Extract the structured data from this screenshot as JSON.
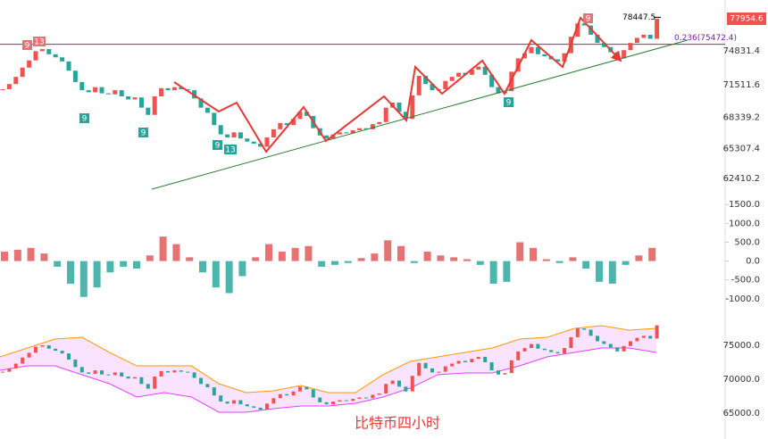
{
  "chart_data": [
    {
      "type": "candlestick",
      "close": [
        71100,
        71600,
        72300,
        73200,
        73900,
        74800,
        75000,
        74500,
        74200,
        73800,
        72900,
        71800,
        71000,
        70800,
        71300,
        70700,
        70600,
        71000,
        70400,
        70100,
        70300,
        69300,
        68600,
        70400,
        71200,
        71000,
        71300,
        71100,
        71000,
        70200,
        69300,
        68800,
        67600,
        66700,
        66400,
        66900,
        66300,
        66000,
        65800,
        65500,
        66400,
        67200,
        67800,
        67600,
        68200,
        68900,
        68500,
        67300,
        66600,
        66300,
        66700,
        66900,
        66800,
        67100,
        67300,
        67200,
        67700,
        67900,
        69300,
        69800,
        68900,
        68200,
        70500,
        72400,
        71600,
        71000,
        71100,
        71900,
        72300,
        72700,
        72500,
        73000,
        73300,
        72500,
        71300,
        70700,
        70900,
        72800,
        74100,
        74600,
        75200,
        74500,
        74300,
        74000,
        73800,
        74600,
        76200,
        77500,
        77300,
        76400,
        75600,
        75200,
        74700,
        74100,
        74900,
        75600,
        76100,
        76400,
        76000,
        77950
      ],
      "up_color": "#ef5350",
      "down_color": "#26a69a",
      "ylim": [
        60240,
        79780
      ],
      "yticks": [
        74831.4,
        71511.6,
        68339.2,
        65307.4,
        62410.2
      ],
      "last_price": 77954.6,
      "high_price": 78447.5,
      "fib_level": {
        "value": 75472.4,
        "label": "0.236(75472.4)"
      },
      "td_marks": [
        "9",
        "13",
        "9",
        "9",
        "9",
        "13",
        "9",
        "9"
      ]
    },
    {
      "type": "macd",
      "histogram": [
        250,
        300,
        350,
        200,
        -150,
        -600,
        -950,
        -700,
        -300,
        -150,
        -200,
        150,
        650,
        450,
        100,
        -300,
        -700,
        -850,
        -400,
        100,
        450,
        250,
        350,
        400,
        -150,
        -100,
        -50,
        80,
        200,
        550,
        400,
        -50,
        250,
        150,
        100,
        50,
        -100,
        -600,
        -550,
        500,
        350,
        50,
        -50,
        100,
        -200,
        -550,
        -600,
        -100,
        150,
        350
      ],
      "ylim": [
        -1240,
        1600
      ],
      "yticks": [
        {
          "value": 1500,
          "label": "1500.0"
        },
        {
          "value": 1000,
          "label": "1000.0"
        },
        {
          "value": 500,
          "label": "500.0"
        },
        {
          "value": 0,
          "label": "0.0"
        },
        {
          "value": -500,
          "label": "-500.0"
        },
        {
          "value": -1000,
          "label": "-1000.0"
        }
      ]
    },
    {
      "type": "bollinger",
      "title": "比特币四小时",
      "bb_upper": [
        73290,
        74610,
        75920,
        76180,
        73950,
        71970,
        71970,
        71970,
        69340,
        68020,
        68290,
        69080,
        68020,
        68020,
        70660,
        72630,
        73290,
        73950,
        74610,
        75920,
        76180,
        77500,
        77900,
        77240,
        77500
      ],
      "bb_lower": [
        71320,
        71970,
        71970,
        70660,
        69340,
        67370,
        68020,
        67370,
        65130,
        65130,
        65660,
        66050,
        66050,
        66450,
        67370,
        68690,
        70660,
        70920,
        70920,
        71970,
        73290,
        73950,
        74610,
        74610,
        73950
      ],
      "band_color": "#e040fb",
      "ylim": [
        61180,
        80530
      ],
      "yticks": [
        {
          "value": 75000,
          "label": "75000.0"
        },
        {
          "value": 70000,
          "label": "70000.0"
        },
        {
          "value": 65000,
          "label": "65000.0"
        }
      ]
    }
  ]
}
